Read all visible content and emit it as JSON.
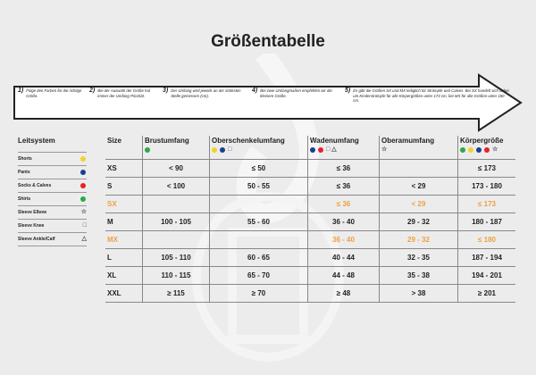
{
  "title": "Größentabelle",
  "steps": [
    {
      "n": "1)",
      "text": "Folge den Farben für die richtige Größe."
    },
    {
      "n": "2)",
      "text": "Bei der Auswahl der Größe hat immer der Umfang Priorität."
    },
    {
      "n": "3)",
      "text": "Der Umfang wird jeweils an der stärksten Stelle gemessen (cm)."
    },
    {
      "n": "4)",
      "text": "Bei zwei Umfangmaßen empfehlen wir die kleinere Größe."
    },
    {
      "n": "5)",
      "text": "Es gibt die Größen SX und MX lediglich für Strümpfe und Calves. Bei SX handelt sich dabei um Kinderstrümpfe für alle Körpergrößen unter 173 cm, bei MX für alle Größen unter 180 cm."
    }
  ],
  "legend": {
    "title": "Leitsystem",
    "items": [
      {
        "label": "Shorts",
        "icon": "dot",
        "color": "#f2d42a"
      },
      {
        "label": "Pants",
        "icon": "dot",
        "color": "#1a3f8f"
      },
      {
        "label": "Socks & Calves",
        "icon": "dot",
        "color": "#e8202a"
      },
      {
        "label": "Shirts",
        "icon": "dot",
        "color": "#2ea84a"
      },
      {
        "label": "Sleeve Elbow",
        "icon": "star",
        "symbol": "☆"
      },
      {
        "label": "Sleeve Knee",
        "icon": "square",
        "symbol": "□"
      },
      {
        "label": "Sleeve Ankle/Calf",
        "icon": "triangle",
        "symbol": "△"
      }
    ]
  },
  "table": {
    "headers": [
      "Size",
      "Brustumfang",
      "Oberschenkelumfang",
      "Wadenumfang",
      "Oberamumfang",
      "Körpergröße"
    ],
    "header_icons": [
      [],
      [
        "#2ea84a"
      ],
      [
        "#f2d42a",
        "#1a3f8f",
        "□"
      ],
      [
        "#1a3f8f",
        "#e8202a",
        "□",
        "△"
      ],
      [
        "☆"
      ],
      [
        "#2ea84a",
        "#f2d42a",
        "#1a3f8f",
        "#e8202a",
        "☆"
      ]
    ],
    "highlight_color": "#f0a040",
    "rows": [
      {
        "cells": [
          "XS",
          "< 90",
          "≤ 50",
          "≤ 36",
          "",
          "≤ 173"
        ]
      },
      {
        "cells": [
          "S",
          "< 100",
          "50 - 55",
          "≤ 36",
          "< 29",
          "173 - 180"
        ]
      },
      {
        "cells": [
          "SX",
          "",
          "",
          "≤ 36",
          "< 29",
          "≤ 173"
        ],
        "highlight": true
      },
      {
        "cells": [
          "M",
          "100 - 105",
          "55 - 60",
          "36 - 40",
          "29 - 32",
          "180 - 187"
        ]
      },
      {
        "cells": [
          "MX",
          "",
          "",
          "36 - 40",
          "29 - 32",
          "≤ 180"
        ],
        "highlight": true
      },
      {
        "cells": [
          "L",
          "105 - 110",
          "60 - 65",
          "40 - 44",
          "32 - 35",
          "187 - 194"
        ]
      },
      {
        "cells": [
          "XL",
          "110 - 115",
          "65 - 70",
          "44 - 48",
          "35 - 38",
          "194 - 201"
        ]
      },
      {
        "cells": [
          "XXL",
          "≥ 115",
          "≥ 70",
          "≥ 48",
          "> 38",
          "≥ 201"
        ]
      }
    ]
  }
}
